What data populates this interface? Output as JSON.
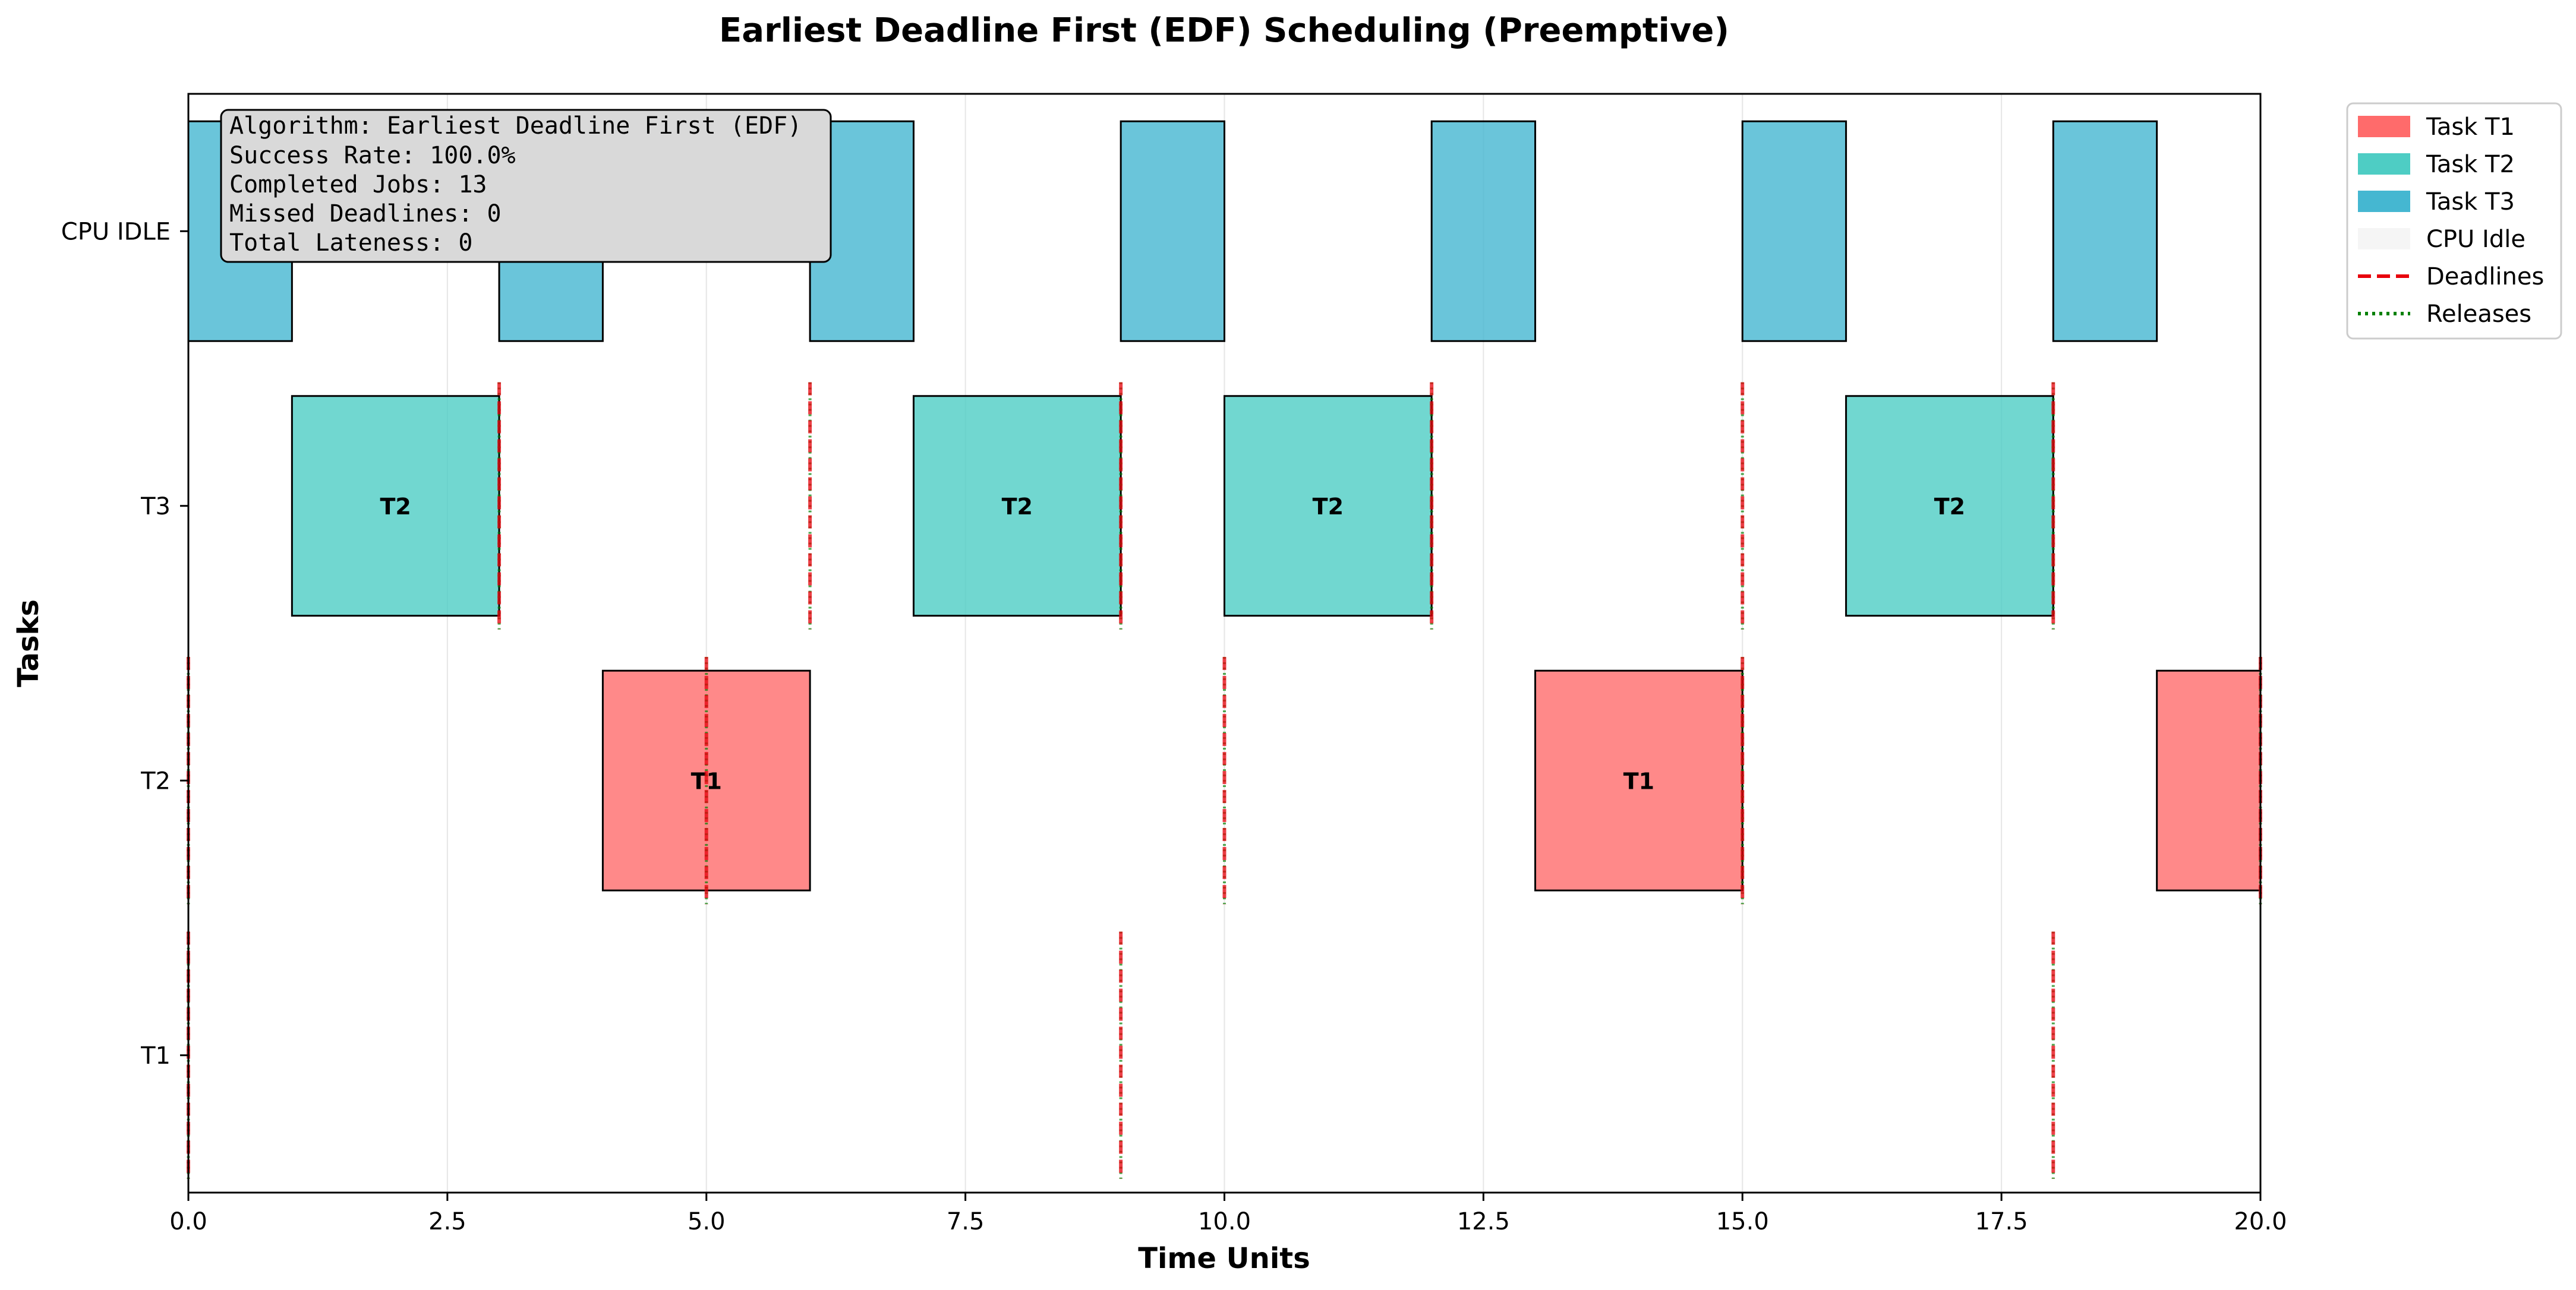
{
  "chart_data": {
    "type": "gantt",
    "title": "Earliest Deadline First (EDF) Scheduling (Preemptive)",
    "xlabel": "Time Units",
    "ylabel": "Tasks",
    "xlim": [
      0,
      20
    ],
    "xticks": [
      0,
      2.5,
      5,
      7.5,
      10,
      12.5,
      15,
      17.5,
      20
    ],
    "xtick_labels": [
      "0.0",
      "2.5",
      "5.0",
      "7.5",
      "10.0",
      "12.5",
      "15.0",
      "17.5",
      "20.0"
    ],
    "ylim": [
      -0.5,
      3.5
    ],
    "yticks": [
      0,
      1,
      2,
      3
    ],
    "ytick_labels": [
      "T1",
      "T2",
      "T3",
      "CPU IDLE"
    ],
    "grid": "x",
    "colors": {
      "T1": "#ff6b6b",
      "T2": "#4ecdc4",
      "T3": "#45b7d1",
      "deadline": "#e8000b",
      "release": "#008000"
    },
    "legend": {
      "placement": "outside-top-right",
      "entries": [
        {
          "label": "Task T1",
          "kind": "patch",
          "color": "#ff6b6b"
        },
        {
          "label": "Task T2",
          "kind": "patch",
          "color": "#4ecdc4"
        },
        {
          "label": "Task T3",
          "kind": "patch",
          "color": "#45b7d1"
        },
        {
          "label": "CPU Idle",
          "kind": "patch",
          "color": "#f5f5f5"
        },
        {
          "label": "Deadlines",
          "kind": "dashed",
          "color": "#e8000b"
        },
        {
          "label": "Releases",
          "kind": "dotted",
          "color": "#008000"
        }
      ]
    },
    "info_box": {
      "lines": [
        "Algorithm: Earliest Deadline First (EDF)",
        "Success Rate: 100.0%",
        "Completed Jobs: 13",
        "Missed Deadlines: 0",
        "Total Lateness: 0"
      ]
    },
    "segments": [
      {
        "task": "T3",
        "lane": 3,
        "start": 0,
        "end": 1,
        "label": ""
      },
      {
        "task": "T2",
        "lane": 2,
        "start": 1,
        "end": 3,
        "label": "T2"
      },
      {
        "task": "T3",
        "lane": 3,
        "start": 3,
        "end": 4,
        "label": ""
      },
      {
        "task": "T1",
        "lane": 1,
        "start": 4,
        "end": 6,
        "label": "T1"
      },
      {
        "task": "T3",
        "lane": 3,
        "start": 6,
        "end": 7,
        "label": ""
      },
      {
        "task": "T2",
        "lane": 2,
        "start": 7,
        "end": 9,
        "label": "T2"
      },
      {
        "task": "T3",
        "lane": 3,
        "start": 9,
        "end": 10,
        "label": ""
      },
      {
        "task": "T2",
        "lane": 2,
        "start": 10,
        "end": 12,
        "label": "T2"
      },
      {
        "task": "T3",
        "lane": 3,
        "start": 12,
        "end": 13,
        "label": ""
      },
      {
        "task": "T1",
        "lane": 1,
        "start": 13,
        "end": 15,
        "label": "T1"
      },
      {
        "task": "T3",
        "lane": 3,
        "start": 15,
        "end": 16,
        "label": ""
      },
      {
        "task": "T2",
        "lane": 2,
        "start": 16,
        "end": 18,
        "label": "T2"
      },
      {
        "task": "T3",
        "lane": 3,
        "start": 18,
        "end": 19,
        "label": ""
      },
      {
        "task": "T1",
        "lane": 1,
        "start": 19,
        "end": 20,
        "label": ""
      }
    ],
    "event_markers": [
      {
        "lane": 0,
        "times": [
          0,
          9,
          18
        ]
      },
      {
        "lane": 1,
        "times": [
          0,
          5,
          10,
          15,
          20
        ]
      },
      {
        "lane": 2,
        "times": [
          3,
          6,
          9,
          12,
          15,
          18
        ]
      }
    ]
  }
}
